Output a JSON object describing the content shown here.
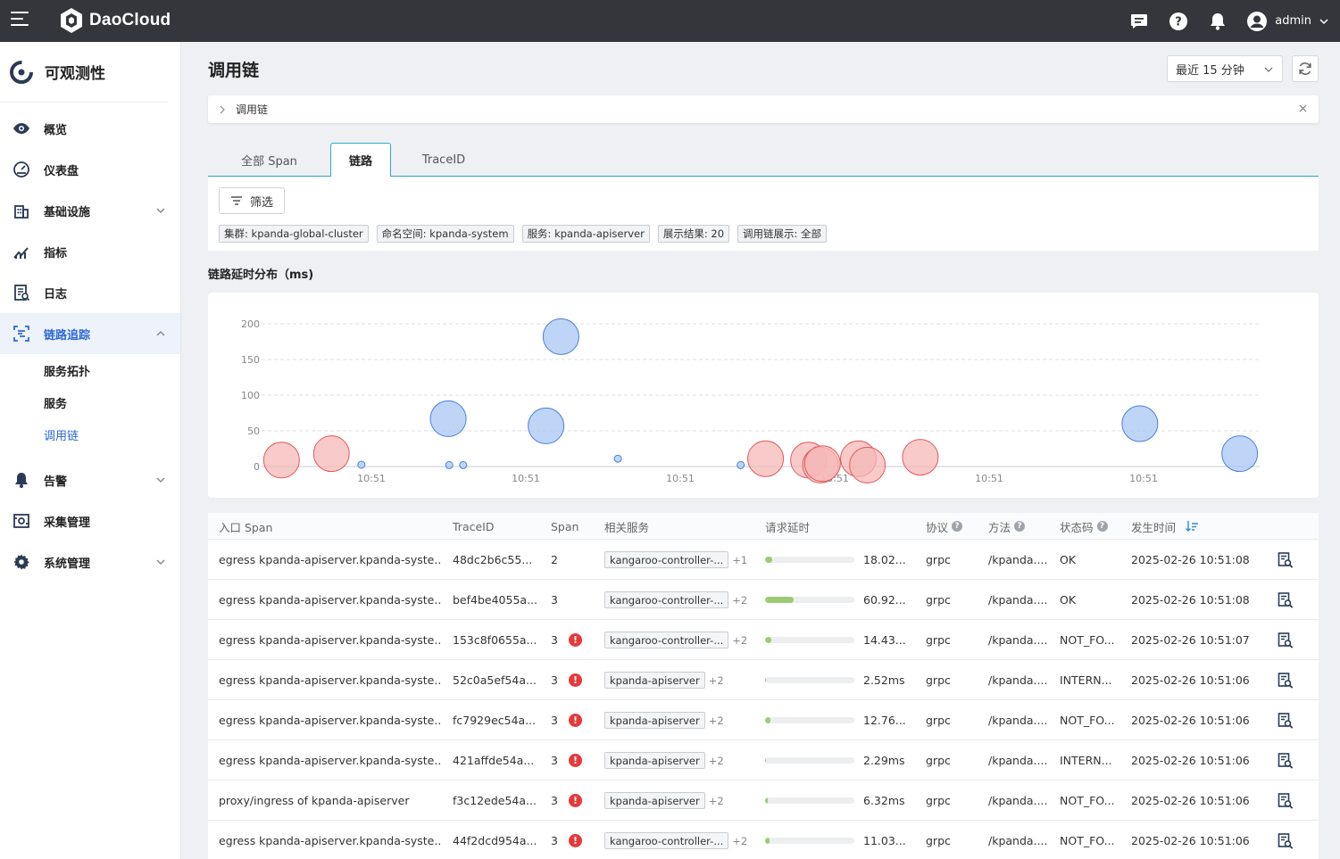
{
  "app": {
    "brand": "DaoCloud",
    "product": "可观测性",
    "user": "admin"
  },
  "topbar": {
    "icons": [
      "message-icon",
      "help-icon",
      "bell-icon",
      "user-avatar-icon"
    ]
  },
  "sidebar": {
    "items": [
      {
        "label": "概览",
        "icon": "eye-icon"
      },
      {
        "label": "仪表盘",
        "icon": "dashboard-icon"
      },
      {
        "label": "基础设施",
        "icon": "building-icon",
        "expandable": true
      },
      {
        "label": "指标",
        "icon": "chart-icon"
      },
      {
        "label": "日志",
        "icon": "log-icon"
      },
      {
        "label": "链路追踪",
        "icon": "trace-icon",
        "expanded": true,
        "active": true
      },
      {
        "label": "告警",
        "icon": "bell-icon",
        "expandable": true
      },
      {
        "label": "采集管理",
        "icon": "collect-icon"
      },
      {
        "label": "系统管理",
        "icon": "gear-icon",
        "expandable": true
      }
    ],
    "sub_items": [
      "服务拓扑",
      "服务",
      "调用链"
    ],
    "active_sub": "调用链"
  },
  "page": {
    "title": "调用链",
    "time_range": "最近 15 分钟",
    "breadcrumb": "调用链"
  },
  "tabs": [
    "全部 Span",
    "链路",
    "TraceID"
  ],
  "active_tab": "链路",
  "filter": {
    "button": "筛选",
    "tags": [
      "集群: kpanda-global-cluster",
      "命名空间: kpanda-system",
      "服务: kpanda-apiserver",
      "展示结果: 20",
      "调用链展示: 全部"
    ]
  },
  "chart_title": "链路延时分布（ms)",
  "chart_data": {
    "type": "scatter",
    "ylim": [
      0,
      200
    ],
    "y_ticks": [
      "0",
      "50",
      "100",
      "150",
      "200"
    ],
    "x_ticks": [
      "10:51",
      "10:51",
      "10:51",
      "10:51",
      "10:51",
      "10:51"
    ],
    "grid": true,
    "colors": {
      "ok": "#a9c7f5",
      "error": "#f5b8b8"
    },
    "points": [
      {
        "x": 0.02,
        "y": 9,
        "status": "error",
        "size": "large"
      },
      {
        "x": 0.07,
        "y": 18,
        "status": "error",
        "size": "large"
      },
      {
        "x": 0.1,
        "y": 2.5,
        "status": "ok",
        "size": "small"
      },
      {
        "x": 0.187,
        "y": 67,
        "status": "ok",
        "size": "large"
      },
      {
        "x": 0.188,
        "y": 2,
        "status": "ok",
        "size": "small"
      },
      {
        "x": 0.202,
        "y": 2,
        "status": "ok",
        "size": "small"
      },
      {
        "x": 0.3,
        "y": 182,
        "status": "ok",
        "size": "large"
      },
      {
        "x": 0.285,
        "y": 57,
        "status": "ok",
        "size": "large"
      },
      {
        "x": 0.357,
        "y": 11,
        "status": "ok",
        "size": "small"
      },
      {
        "x": 0.48,
        "y": 2,
        "status": "ok",
        "size": "small"
      },
      {
        "x": 0.505,
        "y": 11,
        "status": "error",
        "size": "large"
      },
      {
        "x": 0.548,
        "y": 9,
        "status": "error",
        "size": "large"
      },
      {
        "x": 0.56,
        "y": 2,
        "status": "error",
        "size": "large"
      },
      {
        "x": 0.562,
        "y": 4,
        "status": "error",
        "size": "large"
      },
      {
        "x": 0.598,
        "y": 11,
        "status": "error",
        "size": "large"
      },
      {
        "x": 0.607,
        "y": 2,
        "status": "error",
        "size": "large"
      },
      {
        "x": 0.66,
        "y": 13,
        "status": "error",
        "size": "large"
      },
      {
        "x": 0.88,
        "y": 60,
        "status": "ok",
        "size": "large"
      },
      {
        "x": 0.98,
        "y": 18,
        "status": "ok",
        "size": "large"
      }
    ]
  },
  "table": {
    "headers": [
      "入口 Span",
      "TraceID",
      "Span",
      "相关服务",
      "请求延时",
      "协议",
      "方法",
      "状态码",
      "发生时间"
    ],
    "rows": [
      {
        "entry": "egress kpanda-apiserver.kpanda-syste...",
        "trace": "48dc2b6c55...",
        "span": "2",
        "error": false,
        "service": "kangaroo-controller-...",
        "extra": "+1",
        "latency": "18.02...",
        "latency_pct": 0.08,
        "protocol": "grpc",
        "method": "/kpanda....",
        "status": "OK",
        "time": "2025-02-26 10:51:08"
      },
      {
        "entry": "egress kpanda-apiserver.kpanda-syste...",
        "trace": "bef4be4055a...",
        "span": "3",
        "error": false,
        "service": "kangaroo-controller-...",
        "extra": "+2",
        "latency": "60.92...",
        "latency_pct": 0.32,
        "protocol": "grpc",
        "method": "/kpanda....",
        "status": "OK",
        "time": "2025-02-26 10:51:08"
      },
      {
        "entry": "egress kpanda-apiserver.kpanda-syste...",
        "trace": "153c8f0655a...",
        "span": "3",
        "error": true,
        "service": "kangaroo-controller-...",
        "extra": "+2",
        "latency": "14.43...",
        "latency_pct": 0.07,
        "protocol": "grpc",
        "method": "/kpanda....",
        "status": "NOT_FO...",
        "time": "2025-02-26 10:51:07"
      },
      {
        "entry": "egress kpanda-apiserver.kpanda-syste...",
        "trace": "52c0a5ef54a...",
        "span": "3",
        "error": true,
        "service": "kpanda-apiserver",
        "extra": "+2",
        "latency": "2.52ms",
        "latency_pct": 0.01,
        "protocol": "grpc",
        "method": "/kpanda....",
        "status": "INTERN...",
        "time": "2025-02-26 10:51:06"
      },
      {
        "entry": "egress kpanda-apiserver.kpanda-syste...",
        "trace": "fc7929ec54a...",
        "span": "3",
        "error": true,
        "service": "kpanda-apiserver",
        "extra": "+2",
        "latency": "12.76...",
        "latency_pct": 0.06,
        "protocol": "grpc",
        "method": "/kpanda....",
        "status": "NOT_FO...",
        "time": "2025-02-26 10:51:06"
      },
      {
        "entry": "egress kpanda-apiserver.kpanda-syste...",
        "trace": "421affde54a...",
        "span": "3",
        "error": true,
        "service": "kpanda-apiserver",
        "extra": "+2",
        "latency": "2.29ms",
        "latency_pct": 0.01,
        "protocol": "grpc",
        "method": "/kpanda....",
        "status": "INTERN...",
        "time": "2025-02-26 10:51:06"
      },
      {
        "entry": "proxy/ingress of kpanda-apiserver",
        "trace": "f3c12ede54a...",
        "span": "3",
        "error": true,
        "service": "kpanda-apiserver",
        "extra": "+2",
        "latency": "6.32ms",
        "latency_pct": 0.03,
        "protocol": "grpc",
        "method": "/kpanda....",
        "status": "NOT_FO...",
        "time": "2025-02-26 10:51:06"
      },
      {
        "entry": "egress kpanda-apiserver.kpanda-syste...",
        "trace": "44f2dcd954a...",
        "span": "3",
        "error": true,
        "service": "kangaroo-controller-...",
        "extra": "+2",
        "latency": "11.03...",
        "latency_pct": 0.05,
        "protocol": "grpc",
        "method": "/kpanda....",
        "status": "NOT_FO...",
        "time": "2025-02-26 10:51:06"
      }
    ]
  }
}
